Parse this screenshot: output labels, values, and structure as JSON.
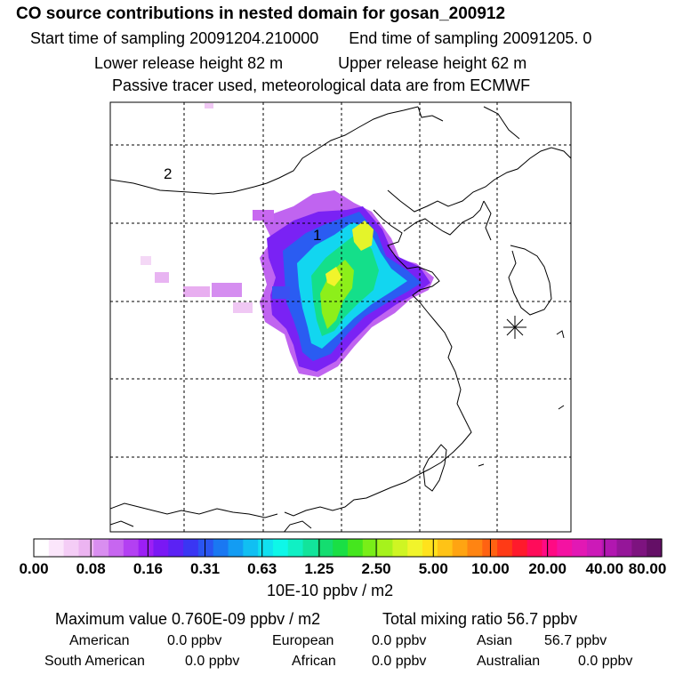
{
  "header": {
    "title": "CO  source contributions in nested domain for gosan_200912",
    "start_label": "Start time of sampling 20091204.210000",
    "end_label": "End time of sampling 20091205.     0",
    "lower_label": "Lower release height   82 m",
    "upper_label": "Upper release height   62 m",
    "tracer_label": "Passive tracer used, meteorological data are from ECMWF"
  },
  "map": {
    "labels": [
      "2",
      "1"
    ],
    "receptor_symbol": "asterisk-marker"
  },
  "colorbar": {
    "ticks": [
      "0.00",
      "0.08",
      "0.16",
      "0.31",
      "0.63",
      "1.25",
      "2.50",
      "5.00",
      "10.00",
      "20.00",
      "40.00",
      "80.00"
    ],
    "units": "10E-10 ppbv / m2",
    "colors": [
      "#ffffff",
      "#fbe6fb",
      "#f4cdf6",
      "#ecb4f1",
      "#d98ef0",
      "#c766f0",
      "#b340f2",
      "#9c1ff5",
      "#7a18f4",
      "#5b22f4",
      "#3a36f3",
      "#2a55f2",
      "#1a78f2",
      "#139cf3",
      "#11bff2",
      "#11e0f0",
      "#0ef7e8",
      "#10f0c4",
      "#12e49b",
      "#14dd70",
      "#1adf45",
      "#45e61e",
      "#79ee18",
      "#a6f21c",
      "#cff523",
      "#f1f42b",
      "#ffe21c",
      "#ffc316",
      "#ffa412",
      "#ff8412",
      "#ff6212",
      "#ff3a16",
      "#ff1a2c",
      "#ff0c5a",
      "#ff0a84",
      "#f412a2",
      "#e218b4",
      "#cc1ab8",
      "#b117b0",
      "#951699",
      "#7d137f",
      "#640f66"
    ]
  },
  "summary": {
    "maximum": "Maximum value  0.760E-09 ppbv / m2",
    "total": "Total mixing ratio       56.7 ppbv",
    "rows": [
      [
        {
          "label": "American",
          "value": "0.0 ppbv"
        },
        {
          "label": "European",
          "value": "0.0 ppbv"
        },
        {
          "label": "Asian",
          "value": "56.7 ppbv"
        }
      ],
      [
        {
          "label": "South American",
          "value": "0.0 ppbv"
        },
        {
          "label": "African",
          "value": "0.0 ppbv"
        },
        {
          "label": "Australian",
          "value": "0.0 ppbv"
        }
      ]
    ]
  }
}
